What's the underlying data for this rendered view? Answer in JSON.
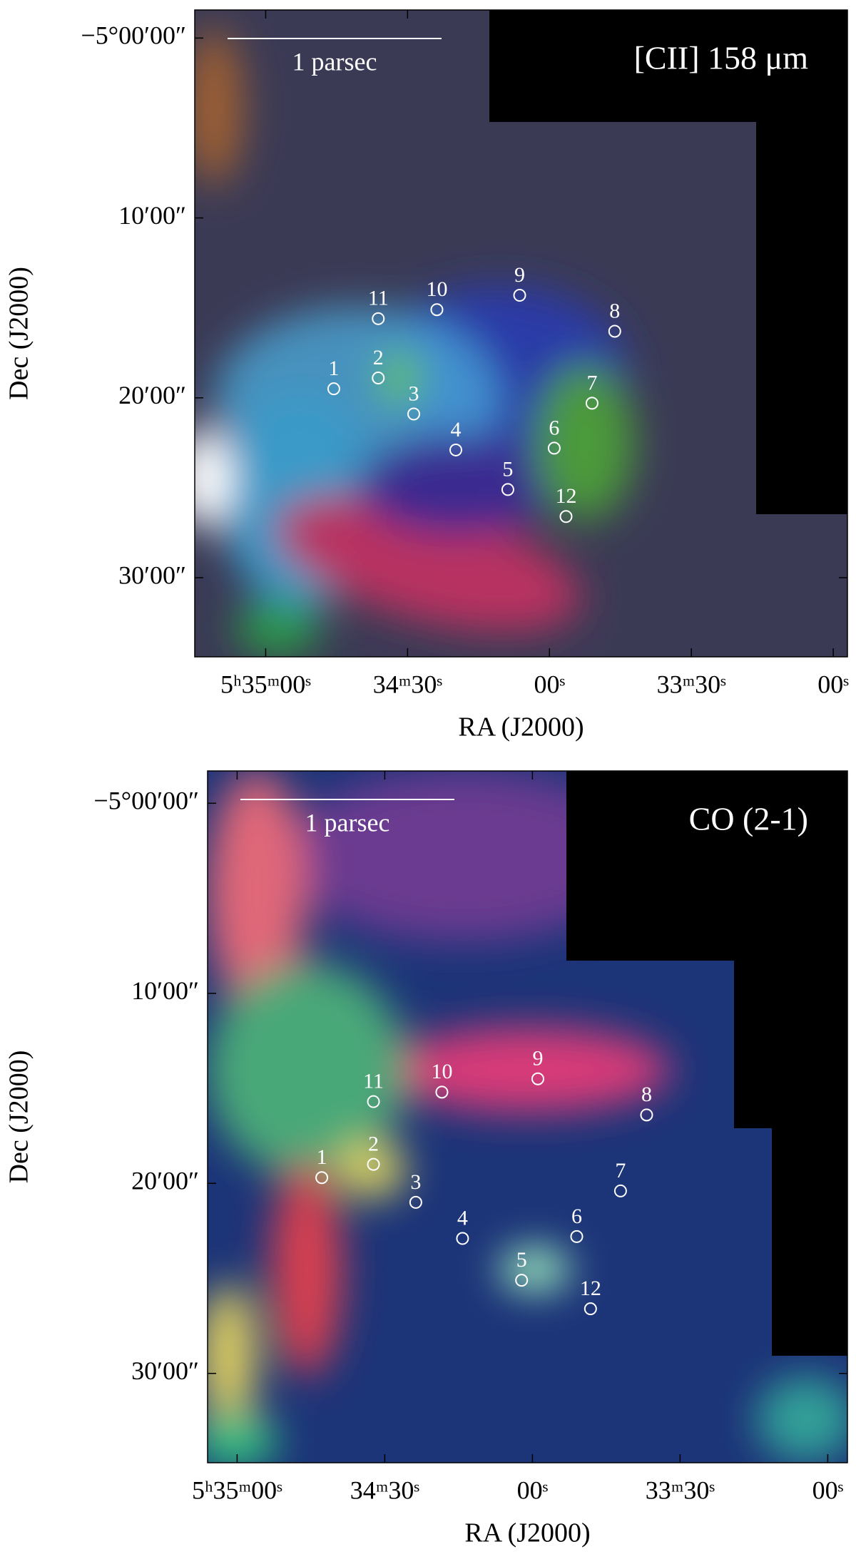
{
  "chart_data": [
    {
      "type": "image",
      "title": "[CII] 158 μm",
      "scale_bar_label": "1 parsec",
      "xlabel": "RA (J2000)",
      "ylabel": "Dec (J2000)",
      "xlim": [
        2115,
        1977
      ],
      "ylim": [
        -1.56,
        34.4
      ],
      "xticks": [
        {
          "value": 2100,
          "label": "5ʰ35ᵐ00ˢ"
        },
        {
          "value": 2070,
          "label": "34ᵐ30ˢ"
        },
        {
          "value": 2040,
          "label": "00ˢ"
        },
        {
          "value": 2010,
          "label": "33ᵐ30ˢ"
        },
        {
          "value": 1980,
          "label": "00ˢ"
        }
      ],
      "yticks": [
        {
          "value": 0,
          "label": "−5°00′00″"
        },
        {
          "value": 10,
          "label": "10′00″"
        },
        {
          "value": 20,
          "label": "20′00″"
        },
        {
          "value": 30,
          "label": "30′00″"
        }
      ],
      "points": [
        {
          "label": "1",
          "x": 2085.6,
          "y": 19.5
        },
        {
          "label": "2",
          "x": 2076.2,
          "y": 18.9
        },
        {
          "label": "3",
          "x": 2068.7,
          "y": 20.9
        },
        {
          "label": "4",
          "x": 2059.8,
          "y": 22.9
        },
        {
          "label": "5",
          "x": 2048.8,
          "y": 25.1
        },
        {
          "label": "6",
          "x": 2039.0,
          "y": 22.8
        },
        {
          "label": "7",
          "x": 2031.0,
          "y": 20.3
        },
        {
          "label": "8",
          "x": 2026.2,
          "y": 16.3
        },
        {
          "label": "9",
          "x": 2046.3,
          "y": 14.3
        },
        {
          "label": "10",
          "x": 2063.8,
          "y": 15.1
        },
        {
          "label": "11",
          "x": 2076.2,
          "y": 15.6
        },
        {
          "label": "12",
          "x": 2036.5,
          "y": 26.6
        }
      ]
    },
    {
      "type": "image",
      "title": "CO (2-1)",
      "scale_bar_label": "1 parsec",
      "xlabel": "RA (J2000)",
      "ylabel": "Dec (J2000)",
      "xlim": [
        2106,
        1976
      ],
      "ylim": [
        -1.7,
        34.7
      ],
      "xticks": [
        {
          "value": 2100,
          "label": "5ʰ35ᵐ00ˢ"
        },
        {
          "value": 2070,
          "label": "34ᵐ30ˢ"
        },
        {
          "value": 2040,
          "label": "00ˢ"
        },
        {
          "value": 2010,
          "label": "33ᵐ30ˢ"
        },
        {
          "value": 1980,
          "label": "00ˢ"
        }
      ],
      "yticks": [
        {
          "value": 0,
          "label": "−5°00′00″"
        },
        {
          "value": 10,
          "label": "10′00″"
        },
        {
          "value": 20,
          "label": "20′00″"
        },
        {
          "value": 30,
          "label": "30′00″"
        }
      ],
      "points": [
        {
          "label": "1",
          "x": 2082.8,
          "y": 19.7
        },
        {
          "label": "2",
          "x": 2072.3,
          "y": 19.0
        },
        {
          "label": "3",
          "x": 2063.7,
          "y": 21.0
        },
        {
          "label": "4",
          "x": 2054.2,
          "y": 22.9
        },
        {
          "label": "5",
          "x": 2042.2,
          "y": 25.1
        },
        {
          "label": "6",
          "x": 2031.0,
          "y": 22.8
        },
        {
          "label": "7",
          "x": 2022.1,
          "y": 20.4
        },
        {
          "label": "8",
          "x": 2016.8,
          "y": 16.4
        },
        {
          "label": "9",
          "x": 2038.9,
          "y": 14.5
        },
        {
          "label": "10",
          "x": 2058.4,
          "y": 15.2
        },
        {
          "label": "11",
          "x": 2072.3,
          "y": 15.7
        },
        {
          "label": "12",
          "x": 2028.2,
          "y": 26.6
        }
      ]
    }
  ]
}
